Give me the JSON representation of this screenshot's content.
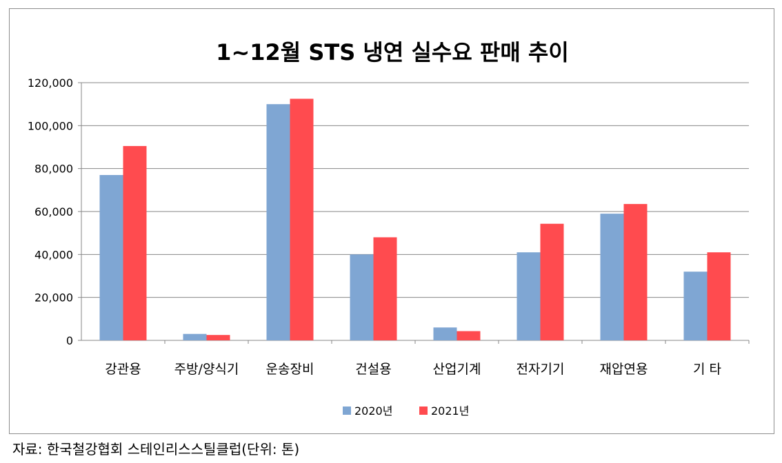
{
  "chart_data": {
    "type": "bar",
    "title": "1~12월 STS 냉연 실수요 판매 추이",
    "categories": [
      "강관용",
      "주방/양식기",
      "운송장비",
      "건설용",
      "산업기계",
      "전자기기",
      "재압연용",
      "기 타"
    ],
    "series": [
      {
        "name": "2020년",
        "color": "#7fa6d3",
        "values": [
          77000,
          3000,
          110000,
          40000,
          6000,
          41000,
          59000,
          32000
        ]
      },
      {
        "name": "2021년",
        "color": "#ff4b4f",
        "values": [
          90500,
          2500,
          112500,
          48000,
          4300,
          54300,
          63500,
          41000
        ]
      }
    ],
    "yticks": [
      "0",
      "20,000",
      "40,000",
      "60,000",
      "80,000",
      "100,000",
      "120,000"
    ],
    "ylim": [
      0,
      120000
    ],
    "xlabel": "",
    "ylabel": "",
    "grid": true,
    "legend_position": "bottom"
  },
  "source_note": "자료: 한국철강협회 스테인리스스틸클럽(단위: 톤)"
}
